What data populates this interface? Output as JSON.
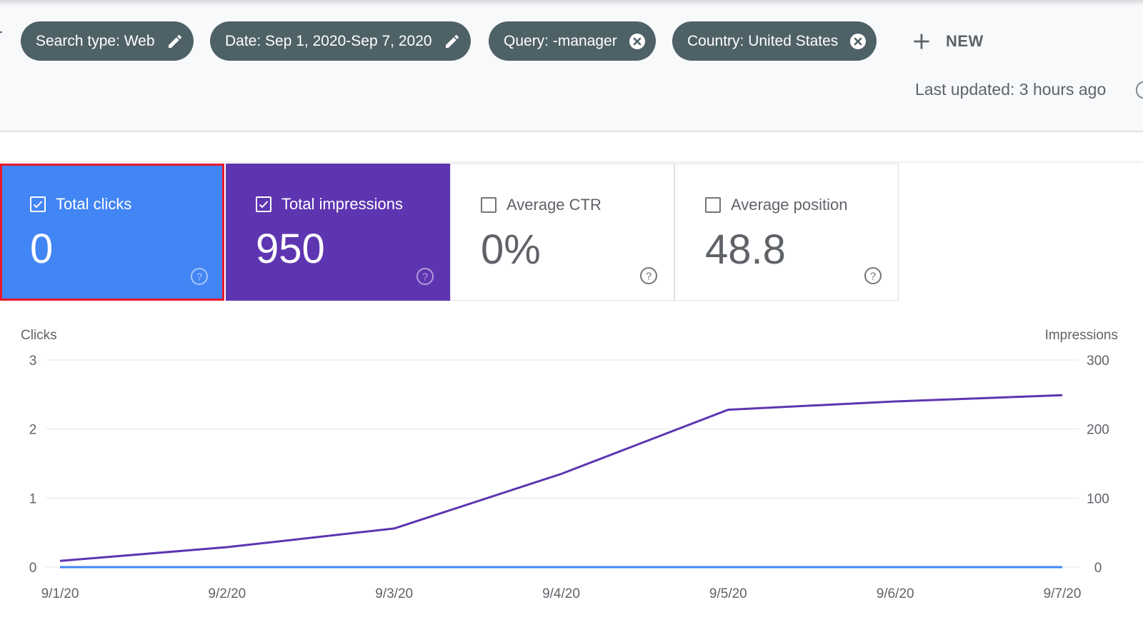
{
  "filters": [
    {
      "label": "Search type: Web",
      "icon": "edit-icon"
    },
    {
      "label": "Date: Sep 1, 2020-Sep 7, 2020",
      "icon": "edit-icon"
    },
    {
      "label": "Query: -manager",
      "icon": "remove-icon"
    },
    {
      "label": "Country: United States",
      "icon": "remove-icon"
    }
  ],
  "new_button": {
    "label": "NEW",
    "icon": "add-icon"
  },
  "last_updated": "Last updated: 3 hours ago",
  "metrics": [
    {
      "label": "Total clicks",
      "value": "0",
      "checked": true,
      "selected": true,
      "color": "#4285f4"
    },
    {
      "label": "Total impressions",
      "value": "950",
      "checked": true,
      "selected": false,
      "color": "#5e35b1"
    },
    {
      "label": "Average CTR",
      "value": "0%",
      "checked": false,
      "selected": false
    },
    {
      "label": "Average position",
      "value": "48.8",
      "checked": false,
      "selected": false
    }
  ],
  "colors": {
    "chip": "#4e6167",
    "clicks": "#4285f4",
    "impressions": "#5e35b1",
    "highlight": "#e8172b"
  },
  "chart_data": {
    "type": "line",
    "x": [
      "9/1/20",
      "9/2/20",
      "9/3/20",
      "9/4/20",
      "9/5/20",
      "9/6/20",
      "9/7/20"
    ],
    "y_left": {
      "label": "Clicks",
      "ticks": [
        "0",
        "1",
        "2",
        "3"
      ],
      "range": [
        0,
        3
      ]
    },
    "y_right": {
      "label": "Impressions",
      "ticks": [
        "0",
        "100",
        "200",
        "300"
      ],
      "range": [
        0,
        300
      ]
    },
    "series": [
      {
        "name": "Clicks",
        "axis": "left",
        "color": "#4285f4",
        "values": [
          0,
          0,
          0,
          0,
          0,
          0,
          0
        ]
      },
      {
        "name": "Impressions",
        "axis": "right",
        "color": "#5e35b1",
        "values": [
          9,
          29,
          56,
          135,
          228,
          240,
          249
        ]
      }
    ],
    "grid": true
  }
}
